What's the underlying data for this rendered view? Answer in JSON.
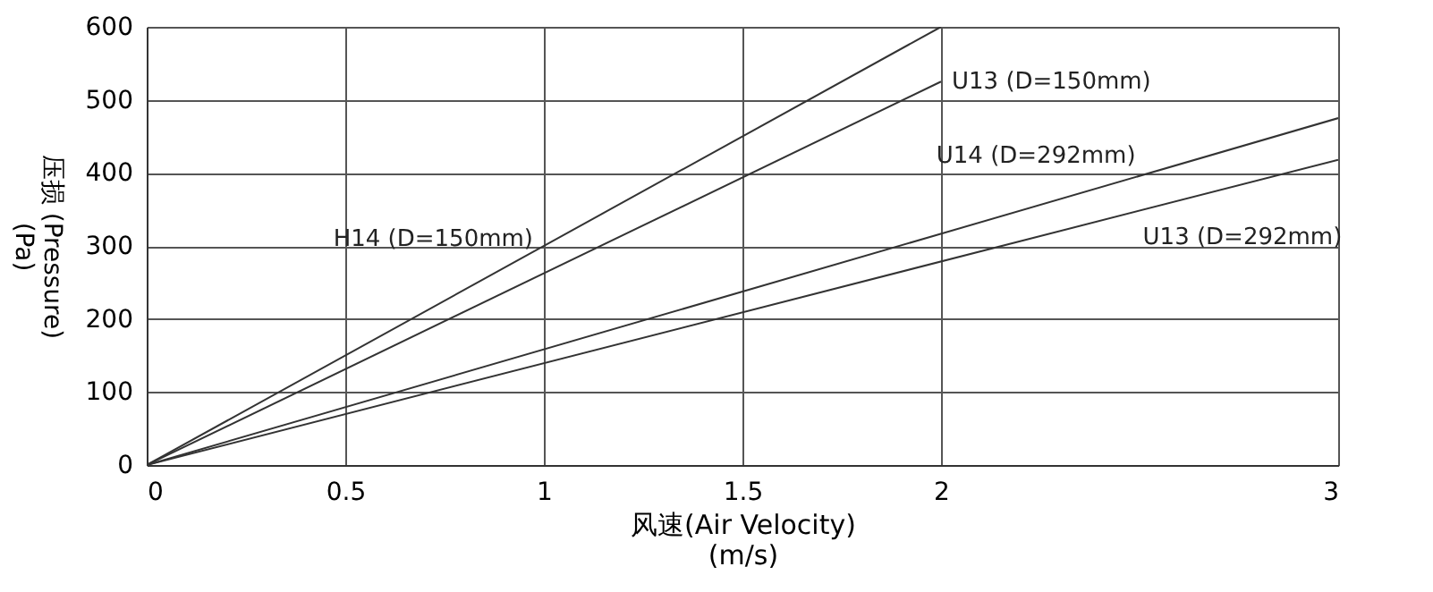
{
  "chart_data": {
    "type": "line",
    "xlabel": "风速(Air Velocity)\n(m/s)",
    "ylabel": "压损 (Pressure)\n(Pa)",
    "series": [
      {
        "name": "H14 (D=150mm)",
        "color": "#333333",
        "x": [
          0,
          2
        ],
        "values": [
          0,
          600
        ]
      },
      {
        "name": "U13 (D=150mm)",
        "color": "#333333",
        "x": [
          0,
          2
        ],
        "values": [
          0,
          525
        ]
      },
      {
        "name": "U14 (D=292mm)",
        "color": "#333333",
        "x": [
          0,
          3
        ],
        "values": [
          0,
          475
        ]
      },
      {
        "name": "U13 (D=292mm)",
        "color": "#333333",
        "x": [
          0,
          3
        ],
        "values": [
          0,
          418
        ]
      }
    ],
    "xlim": [
      0,
      3
    ],
    "xticks": [
      {
        "value": 0,
        "label": "0"
      },
      0.5,
      {
        "value": 1,
        "label": "1"
      },
      1.5,
      {
        "value": 2,
        "label": "2"
      },
      {
        "value": 3,
        "label": "3"
      }
    ],
    "ylim": [
      0,
      600
    ],
    "yticks": [
      0,
      100,
      200,
      300,
      400,
      500,
      600
    ],
    "grid": true,
    "legend": false,
    "marker": "none",
    "line_style": "solid"
  }
}
